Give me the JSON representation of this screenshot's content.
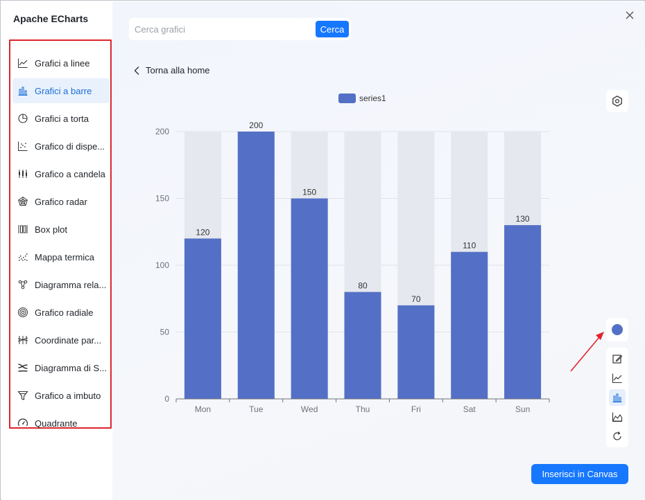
{
  "app": {
    "title": "Apache ECharts"
  },
  "sidebar": {
    "items": [
      {
        "label": "Grafici a linee",
        "icon": "line-chart-icon"
      },
      {
        "label": "Grafici a barre",
        "icon": "bar-chart-icon",
        "active": true
      },
      {
        "label": "Grafici a torta",
        "icon": "pie-chart-icon"
      },
      {
        "label": "Grafico di dispe...",
        "icon": "scatter-chart-icon"
      },
      {
        "label": "Grafico a candela",
        "icon": "candlestick-chart-icon"
      },
      {
        "label": "Grafico radar",
        "icon": "radar-chart-icon"
      },
      {
        "label": "Box plot",
        "icon": "boxplot-chart-icon"
      },
      {
        "label": "Mappa termica",
        "icon": "heatmap-chart-icon"
      },
      {
        "label": "Diagramma rela...",
        "icon": "relation-graph-icon"
      },
      {
        "label": "Grafico radiale",
        "icon": "radial-chart-icon"
      },
      {
        "label": "Coordinate par...",
        "icon": "parallel-coordinates-icon"
      },
      {
        "label": "Diagramma di S...",
        "icon": "sankey-chart-icon"
      },
      {
        "label": "Grafico a imbuto",
        "icon": "funnel-chart-icon"
      },
      {
        "label": "Quadrante",
        "icon": "gauge-chart-icon"
      }
    ]
  },
  "search": {
    "placeholder": "Cerca grafici",
    "value": "",
    "button_label": "Cerca"
  },
  "nav": {
    "back_label": "Torna alla home"
  },
  "actions": {
    "insert_label": "Inserisci in Canvas"
  },
  "colors": {
    "accent": "#1677ff",
    "series": "#5470c6",
    "bar_background": "#e5e8ee",
    "annotation": "#e0252b"
  },
  "chart_data": {
    "type": "bar",
    "categories": [
      "Mon",
      "Tue",
      "Wed",
      "Thu",
      "Fri",
      "Sat",
      "Sun"
    ],
    "series": [
      {
        "name": "series1",
        "values": [
          120,
          200,
          150,
          80,
          70,
          110,
          130
        ]
      }
    ],
    "ylim": [
      0,
      200
    ],
    "yticks": [
      0,
      50,
      100,
      150,
      200
    ],
    "show_background": true,
    "data_labels": true,
    "legend": "top-center",
    "grid": true
  },
  "toolbar": {
    "tools": [
      {
        "name": "edit-icon"
      },
      {
        "name": "line-chart-icon"
      },
      {
        "name": "bar-chart-icon",
        "active": true
      },
      {
        "name": "area-chart-icon"
      },
      {
        "name": "refresh-icon"
      }
    ]
  }
}
